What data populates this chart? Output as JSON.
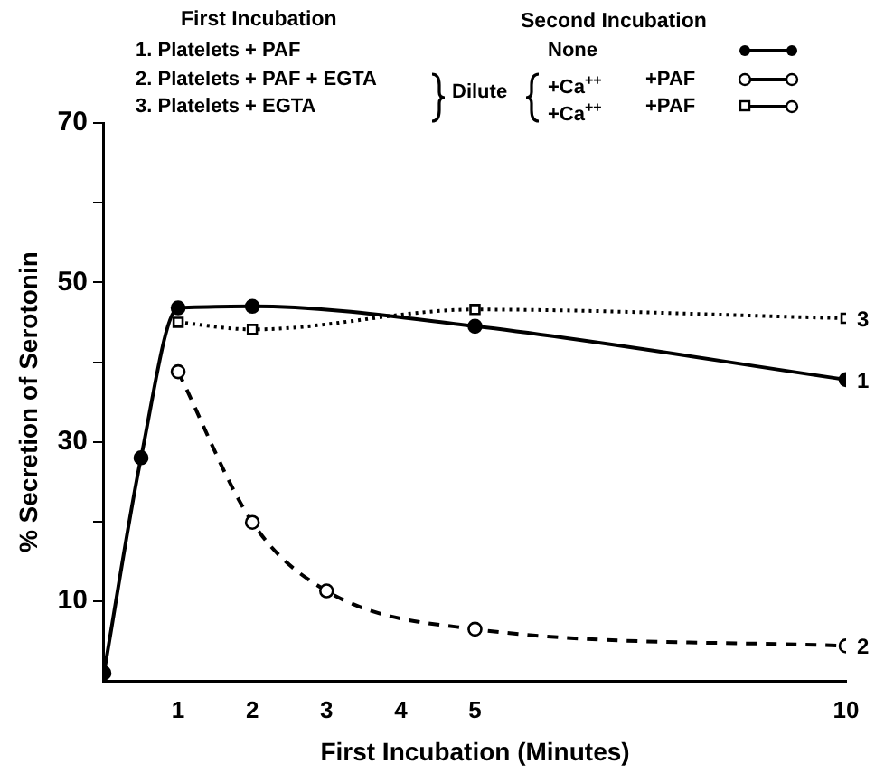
{
  "chart_data": {
    "type": "line",
    "xlabel": "First Incubation (Minutes)",
    "ylabel": "% Secretion of Serotonin",
    "xlim": [
      0,
      10
    ],
    "xticks": [
      1,
      2,
      3,
      4,
      5,
      10
    ],
    "ylim": [
      0,
      70
    ],
    "yticks": [
      10,
      {
        "value": 20,
        "label": null
      },
      30,
      {
        "value": 40,
        "label": null
      },
      50,
      {
        "value": 60,
        "label": null
      },
      70
    ],
    "grid": false,
    "legend": false,
    "series": [
      {
        "name": "1",
        "color": "#000000",
        "x": [
          0,
          0.5,
          1,
          2,
          5,
          10
        ],
        "values": [
          1,
          28,
          46.8,
          47,
          44.5,
          37.8
        ],
        "marker": "circle",
        "line_style": "solid"
      },
      {
        "name": "2",
        "color": "#000000",
        "x": [
          1,
          2,
          3,
          5,
          10
        ],
        "values": [
          38.8,
          19.9,
          11.3,
          6.5,
          4.4
        ],
        "marker": "circle",
        "line_style": "dashed"
      },
      {
        "name": "3",
        "color": "#000000",
        "x": [
          1,
          2,
          5,
          10
        ],
        "values": [
          45,
          44.1,
          46.6,
          45.5
        ],
        "marker": "square",
        "line_style": "dotted"
      }
    ],
    "annotations": [
      "First Incubation",
      "Second Incubation",
      "1. Platelets + PAF",
      "2. Platelets + PAF + EGTA",
      "3. Platelets + EGTA",
      "Dilute",
      "None",
      "+Ca$^{++}$",
      "+PAF",
      "+Ca$^{++}$",
      "+PAF"
    ]
  }
}
